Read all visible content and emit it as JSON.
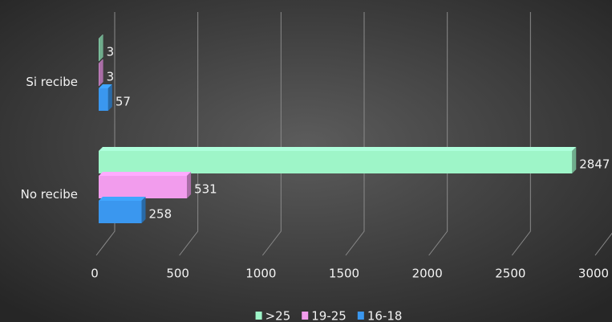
{
  "chart_data": {
    "type": "bar",
    "orientation": "horizontal",
    "categories": [
      "Si recibe",
      "No recibe"
    ],
    "series": [
      {
        "name": ">25",
        "color": "#9ef5c8",
        "values": [
          3,
          2847
        ]
      },
      {
        "name": "19-25",
        "color": "#f29ced",
        "values": [
          3,
          531
        ]
      },
      {
        "name": "16-18",
        "color": "#3a97ef",
        "values": [
          57,
          258
        ]
      }
    ],
    "xlim": [
      0,
      3000
    ],
    "xticks": [
      0,
      500,
      1000,
      1500,
      2000,
      2500,
      3000
    ],
    "grid": true,
    "legend": "bottom"
  }
}
